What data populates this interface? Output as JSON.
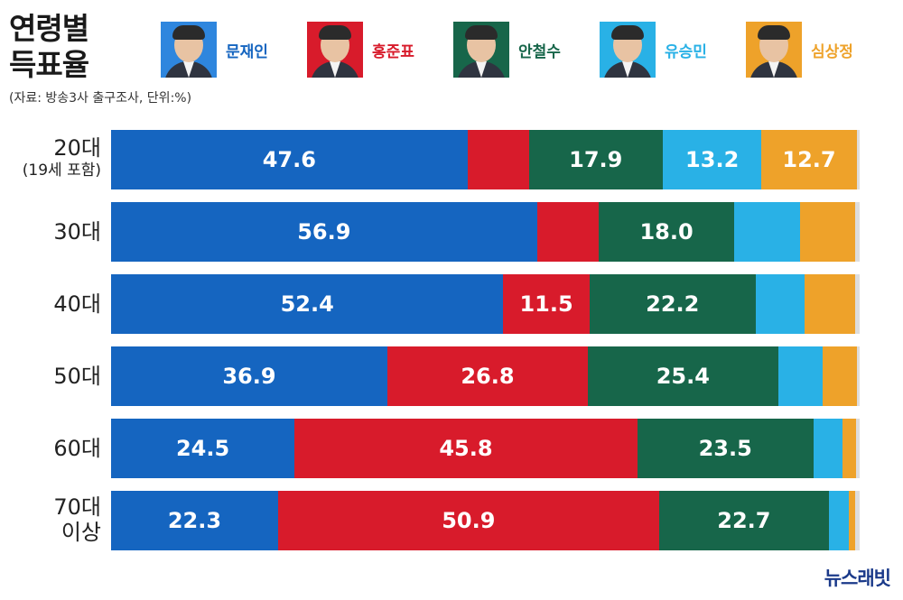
{
  "title_line1": "연령별",
  "title_line2": "득표율",
  "source": "(자료: 방송3사 출구조사, 단위:%)",
  "brand": "뉴스래빗",
  "colors": {
    "문재인": "#1565c0",
    "홍준표": "#d81b2b",
    "안철수": "#17664a",
    "유승민": "#29b1e6",
    "심상정": "#eea22a"
  },
  "legend": [
    {
      "name": "문재인",
      "color": "#1565c0",
      "photo_bg": "#2e86de"
    },
    {
      "name": "홍준표",
      "color": "#d81b2b",
      "photo_bg": "#d81b2b"
    },
    {
      "name": "안철수",
      "color": "#17664a",
      "photo_bg": "#17664a"
    },
    {
      "name": "유승민",
      "color": "#29b1e6",
      "photo_bg": "#29b1e6"
    },
    {
      "name": "심상정",
      "color": "#eea22a",
      "photo_bg": "#eea22a"
    }
  ],
  "chart_data": {
    "type": "bar",
    "orientation": "horizontal-stacked",
    "title": "연령별 득표율",
    "subtitle": "(자료: 방송3사 출구조사, 단위:%)",
    "xlim": [
      0,
      100
    ],
    "categories": [
      {
        "label": "20대",
        "sub": "(19세 포함)"
      },
      {
        "label": "30대",
        "sub": ""
      },
      {
        "label": "40대",
        "sub": ""
      },
      {
        "label": "50대",
        "sub": ""
      },
      {
        "label": "60대",
        "sub": ""
      },
      {
        "label": "70대",
        "sub": "이상"
      }
    ],
    "series": [
      {
        "name": "문재인",
        "color": "#1565c0",
        "values": [
          47.6,
          56.9,
          52.4,
          36.9,
          24.5,
          22.3
        ],
        "labels": [
          "47.6",
          "56.9",
          "52.4",
          "36.9",
          "24.5",
          "22.3"
        ]
      },
      {
        "name": "홍준표",
        "color": "#d81b2b",
        "values": [
          8.2,
          8.3,
          11.5,
          26.8,
          45.8,
          50.9
        ],
        "labels": [
          "",
          "",
          "11.5",
          "26.8",
          "45.8",
          "50.9"
        ]
      },
      {
        "name": "안철수",
        "color": "#17664a",
        "values": [
          17.9,
          18.0,
          22.2,
          25.4,
          23.5,
          22.7
        ],
        "labels": [
          "17.9",
          "18.0",
          "22.2",
          "25.4",
          "23.5",
          "22.7"
        ]
      },
      {
        "name": "유승민",
        "color": "#29b1e6",
        "values": [
          13.2,
          8.9,
          6.5,
          6.0,
          3.9,
          2.7
        ],
        "labels": [
          "13.2",
          "",
          "",
          "",
          "",
          ""
        ]
      },
      {
        "name": "심상정",
        "color": "#eea22a",
        "values": [
          12.7,
          7.3,
          6.8,
          4.6,
          1.8,
          0.8
        ],
        "labels": [
          "12.7",
          "",
          "",
          "",
          "",
          ""
        ]
      }
    ]
  }
}
